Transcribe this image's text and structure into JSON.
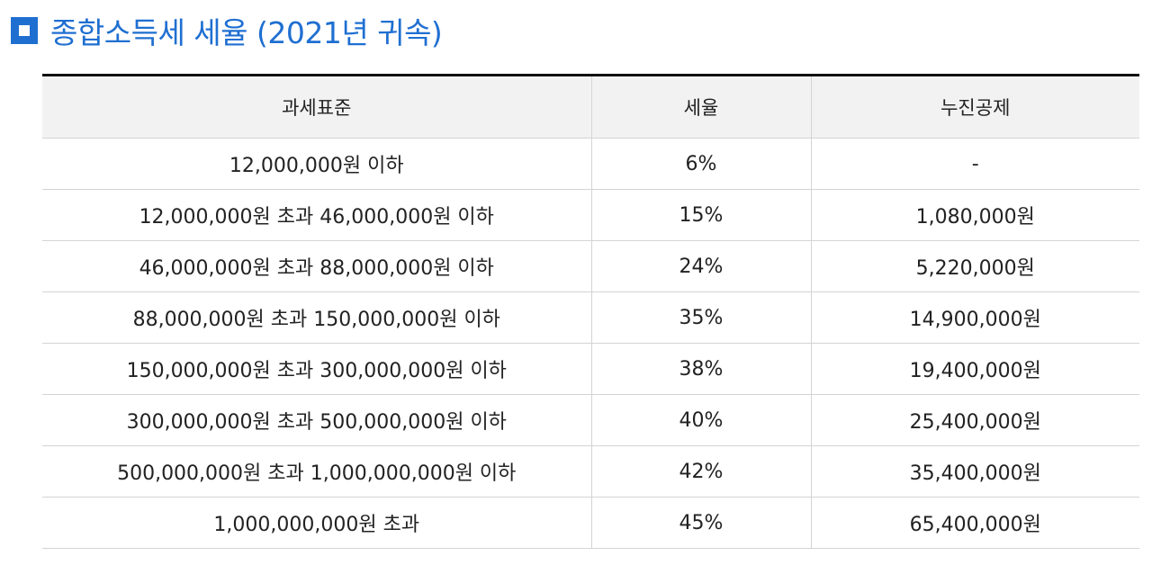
{
  "title": {
    "icon": "square-bullet-icon",
    "text": "종합소득세 세율 (2021년 귀속)",
    "color": "#1f6fd1"
  },
  "table": {
    "headers": [
      "과세표준",
      "세율",
      "누진공제"
    ],
    "rows": [
      {
        "base": "12,000,000원 이하",
        "rate": "6%",
        "deduction": "-"
      },
      {
        "base": "12,000,000원 초과 46,000,000원 이하",
        "rate": "15%",
        "deduction": "1,080,000원"
      },
      {
        "base": "46,000,000원 초과 88,000,000원 이하",
        "rate": "24%",
        "deduction": "5,220,000원"
      },
      {
        "base": "88,000,000원 초과 150,000,000원 이하",
        "rate": "35%",
        "deduction": "14,900,000원"
      },
      {
        "base": "150,000,000원 초과 300,000,000원 이하",
        "rate": "38%",
        "deduction": "19,400,000원"
      },
      {
        "base": "300,000,000원 초과 500,000,000원 이하",
        "rate": "40%",
        "deduction": "25,400,000원"
      },
      {
        "base": "500,000,000원 초과 1,000,000,000원 이하",
        "rate": "42%",
        "deduction": "35,400,000원"
      },
      {
        "base": "1,000,000,000원 초과",
        "rate": "45%",
        "deduction": "65,400,000원"
      }
    ]
  }
}
